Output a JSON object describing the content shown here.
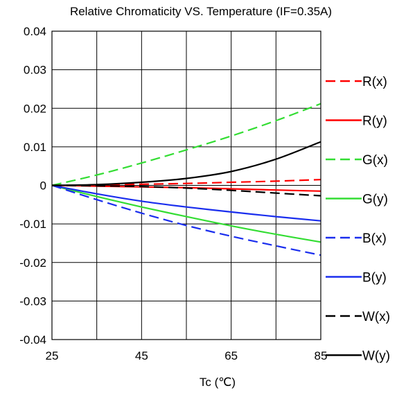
{
  "chart_data": {
    "type": "line",
    "title": "Relative Chromaticity VS. Temperature (IF=0.35A)",
    "xlabel": "Tc (℃)",
    "ylabel": "",
    "xlim": [
      25,
      85
    ],
    "ylim": [
      -0.04,
      0.04
    ],
    "x_ticks": [
      25,
      35,
      45,
      55,
      65,
      75,
      85
    ],
    "x_tick_labels": [
      "25",
      "",
      "45",
      "",
      "65",
      "",
      "85"
    ],
    "y_ticks": [
      0.04,
      0.03,
      0.02,
      0.01,
      0,
      -0.01,
      -0.02,
      -0.03,
      -0.04
    ],
    "y_tick_labels": [
      "0.04",
      "0.03",
      "0.02",
      "0.01",
      "0",
      "-0.01",
      "-0.02",
      "-0.03",
      "-0.04"
    ],
    "grid": true,
    "legend_position": "right",
    "x": [
      25,
      35,
      45,
      55,
      65,
      75,
      85
    ],
    "series": [
      {
        "name": "R(x)",
        "color": "#ff0000",
        "dash": true,
        "values": [
          0,
          0.0001,
          0.0003,
          0.0005,
          0.0008,
          0.0011,
          0.0015
        ]
      },
      {
        "name": "R(y)",
        "color": "#ff0000",
        "dash": false,
        "values": [
          0,
          -0.0002,
          -0.0004,
          -0.0006,
          -0.0009,
          -0.0012,
          -0.0015
        ]
      },
      {
        "name": "G(x)",
        "color": "#33dd33",
        "dash": true,
        "values": [
          0,
          0.0027,
          0.0058,
          0.0092,
          0.0128,
          0.0168,
          0.0212
        ]
      },
      {
        "name": "G(y)",
        "color": "#33dd33",
        "dash": false,
        "values": [
          0,
          -0.0029,
          -0.0056,
          -0.0081,
          -0.0105,
          -0.0127,
          -0.0147
        ]
      },
      {
        "name": "B(x)",
        "color": "#1a2eee",
        "dash": true,
        "values": [
          0,
          -0.0037,
          -0.0072,
          -0.0104,
          -0.0132,
          -0.0157,
          -0.0181
        ]
      },
      {
        "name": "B(y)",
        "color": "#1a2eee",
        "dash": false,
        "values": [
          0,
          -0.0022,
          -0.0041,
          -0.0056,
          -0.0069,
          -0.0081,
          -0.0092
        ]
      },
      {
        "name": "W(x)",
        "color": "#000000",
        "dash": true,
        "values": [
          0,
          -0.0001,
          -0.0003,
          -0.0007,
          -0.0013,
          -0.002,
          -0.0027
        ]
      },
      {
        "name": "W(y)",
        "color": "#000000",
        "dash": false,
        "values": [
          0,
          0.0002,
          0.0008,
          0.0018,
          0.0036,
          0.0068,
          0.0113
        ]
      }
    ]
  }
}
